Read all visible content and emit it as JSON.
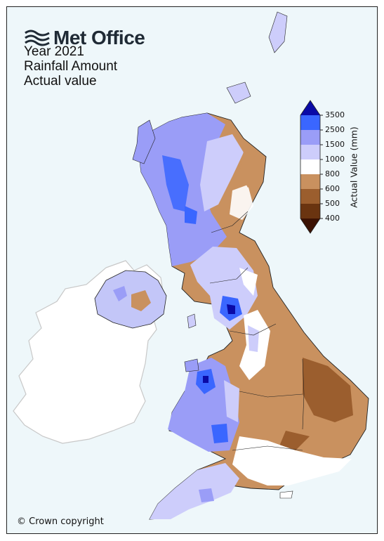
{
  "header": {
    "logo_text": "Met Office",
    "title_lines": [
      "Year 2021",
      "Rainfall Amount",
      "Actual value"
    ]
  },
  "legend": {
    "axis_label": "Actual Value (mm)",
    "ticks": [
      "3500",
      "2500",
      "1500",
      "1000",
      "800",
      "600",
      "500",
      "400"
    ],
    "colors": [
      "#0a0aa6",
      "#3a66ff",
      "#9a9df7",
      "#cdcdfb",
      "#ffffff",
      "#c9915f",
      "#9b5e2e",
      "#6a3410",
      "#3b1203"
    ]
  },
  "footer": {
    "copyright": "© Crown copyright"
  }
}
